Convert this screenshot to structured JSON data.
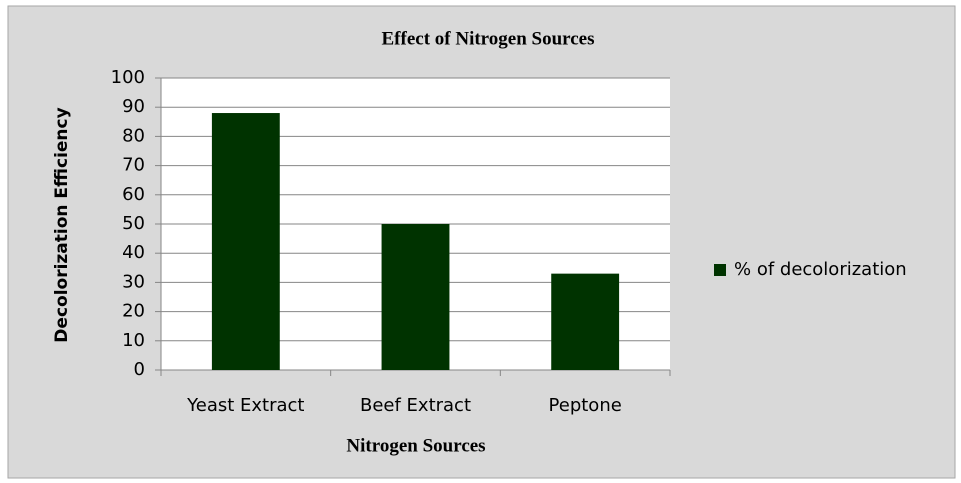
{
  "chart_data": {
    "type": "bar",
    "title": "Effect of Nitrogen Sources",
    "x_label": "Nitrogen Sources",
    "y_label": "Decolorization Efficiency",
    "categories": [
      "Yeast Extract",
      "Beef Extract",
      "Peptone"
    ],
    "series": [
      {
        "name": "% of decolorization",
        "color": "#003300",
        "values": [
          88,
          50,
          33
        ]
      }
    ],
    "ylim": [
      0,
      100
    ],
    "yticks": [
      0,
      10,
      20,
      30,
      40,
      50,
      60,
      70,
      80,
      90,
      100
    ],
    "grid": true,
    "legend": "right"
  }
}
